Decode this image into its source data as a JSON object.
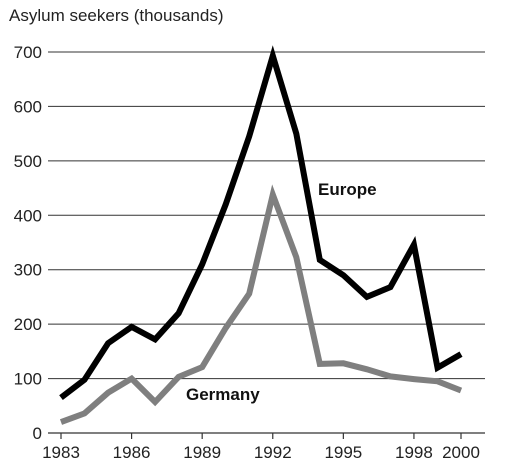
{
  "chart_data": {
    "type": "line",
    "title": "",
    "ylabel": "Asylum seekers (thousands)",
    "xlabel": "",
    "xlim": [
      1983,
      2000
    ],
    "ylim": [
      0,
      700
    ],
    "x_ticks": [
      1983,
      1986,
      1989,
      1992,
      1995,
      1998,
      2000
    ],
    "y_ticks": [
      0,
      100,
      200,
      300,
      400,
      500,
      600,
      700
    ],
    "grid": "horizontal",
    "legend": "inline labels",
    "series": [
      {
        "name": "Europe",
        "color": "#000000",
        "x": [
          1983,
          1984,
          1985,
          1986,
          1987,
          1988,
          1989,
          1990,
          1991,
          1992,
          1993,
          1994,
          1995,
          1996,
          1997,
          1998,
          1999,
          2000
        ],
        "y": [
          65,
          98,
          165,
          195,
          172,
          220,
          310,
          420,
          545,
          693,
          550,
          318,
          290,
          250,
          268,
          346,
          120,
          145
        ]
      },
      {
        "name": "Germany",
        "color": "#7f7f7f",
        "x": [
          1983,
          1984,
          1985,
          1986,
          1987,
          1988,
          1989,
          1990,
          1991,
          1992,
          1993,
          1994,
          1995,
          1996,
          1997,
          1998,
          1999,
          2000
        ],
        "y": [
          20,
          36,
          74,
          100,
          57,
          103,
          121,
          193,
          256,
          438,
          323,
          127,
          128,
          117,
          104,
          99,
          95,
          78
        ]
      }
    ]
  }
}
